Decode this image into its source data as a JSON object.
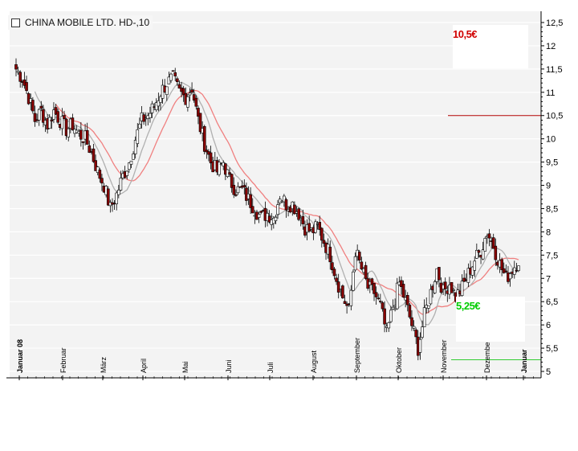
{
  "header": {
    "title": "CHINA MOBILE LTD.  HD-,10"
  },
  "annotations": {
    "high_label": "10,5€",
    "low_label": "5,25€"
  },
  "colors": {
    "up": "#ffffff",
    "down": "#8b0000",
    "ma_short": "#b0b0b0",
    "ma_long": "#f08080",
    "high_line": "#b00000",
    "low_line": "#33cc33",
    "grid": "#d8d8d8"
  },
  "chart_data": {
    "type": "candlestick",
    "title": "CHINA MOBILE LTD.  HD-,10",
    "x_labels": [
      "Januar 08",
      "Februar",
      "März",
      "April",
      "Mai",
      "Juni",
      "Juli",
      "August",
      "September",
      "Oktober",
      "November",
      "Dezember",
      "Januar"
    ],
    "y_ticks": [
      "5",
      "5,5",
      "6",
      "6,5",
      "7",
      "7,5",
      "8",
      "8,5",
      "9",
      "9,5",
      "10",
      "10,5",
      "11",
      "11,5",
      "12",
      "12,5"
    ],
    "ylim": [
      5,
      12.5
    ],
    "grid": true,
    "reference_lines": [
      {
        "label": "10,5€",
        "value": 10.5
      },
      {
        "label": "5,25€",
        "value": 5.25
      }
    ],
    "close_path": [
      [
        0,
        11.5
      ],
      [
        3,
        11.3
      ],
      [
        6,
        10.9
      ],
      [
        9,
        10.4
      ],
      [
        12,
        10.6
      ],
      [
        15,
        10.3
      ],
      [
        18,
        10.6
      ],
      [
        21,
        10.4
      ],
      [
        24,
        10.2
      ],
      [
        27,
        10.3
      ],
      [
        30,
        10.1
      ],
      [
        33,
        10.0
      ],
      [
        36,
        9.7
      ],
      [
        39,
        9.3
      ],
      [
        42,
        9.0
      ],
      [
        45,
        8.5
      ],
      [
        48,
        8.8
      ],
      [
        51,
        9.2
      ],
      [
        54,
        9.5
      ],
      [
        57,
        10.0
      ],
      [
        60,
        10.4
      ],
      [
        63,
        10.5
      ],
      [
        66,
        10.7
      ],
      [
        69,
        11.0
      ],
      [
        72,
        11.2
      ],
      [
        75,
        11.3
      ],
      [
        78,
        11.0
      ],
      [
        81,
        10.9
      ],
      [
        84,
        11.1
      ],
      [
        87,
        10.4
      ],
      [
        90,
        9.9
      ],
      [
        93,
        9.5
      ],
      [
        96,
        9.3
      ],
      [
        99,
        9.5
      ],
      [
        102,
        9.1
      ],
      [
        105,
        8.9
      ],
      [
        108,
        8.9
      ],
      [
        111,
        8.7
      ],
      [
        114,
        8.5
      ],
      [
        117,
        8.3
      ],
      [
        120,
        8.4
      ],
      [
        123,
        8.3
      ],
      [
        126,
        8.8
      ],
      [
        129,
        8.6
      ],
      [
        132,
        8.6
      ],
      [
        135,
        8.4
      ],
      [
        138,
        8.1
      ],
      [
        141,
        8.0
      ],
      [
        144,
        8.1
      ],
      [
        147,
        7.8
      ],
      [
        150,
        7.5
      ],
      [
        153,
        7.0
      ],
      [
        156,
        6.6
      ],
      [
        159,
        6.3
      ],
      [
        162,
        7.6
      ],
      [
        165,
        7.2
      ],
      [
        168,
        6.8
      ],
      [
        171,
        6.7
      ],
      [
        174,
        6.4
      ],
      [
        177,
        5.8
      ],
      [
        180,
        6.4
      ],
      [
        183,
        6.9
      ],
      [
        186,
        6.5
      ],
      [
        189,
        6.0
      ],
      [
        192,
        5.5
      ],
      [
        195,
        6.2
      ],
      [
        198,
        6.7
      ],
      [
        201,
        7.2
      ],
      [
        204,
        6.7
      ],
      [
        207,
        6.9
      ],
      [
        210,
        6.6
      ],
      [
        213,
        6.8
      ],
      [
        216,
        7.1
      ],
      [
        219,
        7.4
      ],
      [
        222,
        7.6
      ],
      [
        225,
        8.0
      ],
      [
        228,
        7.7
      ],
      [
        231,
        7.3
      ],
      [
        234,
        7.0
      ],
      [
        237,
        7.2
      ],
      [
        240,
        7.4
      ]
    ]
  }
}
